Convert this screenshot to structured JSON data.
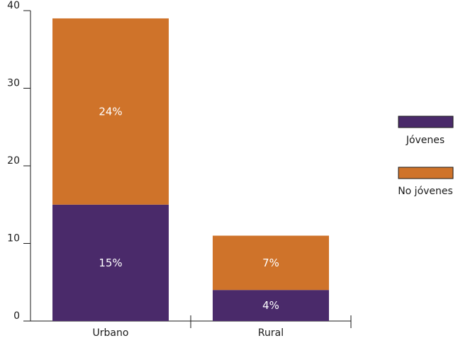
{
  "chart_data": {
    "type": "bar",
    "stacked": true,
    "title": "",
    "xlabel": "",
    "ylabel": "",
    "categories": [
      "Urbano",
      "Rural"
    ],
    "series": [
      {
        "name": "Jóvenes",
        "values": [
          15,
          4
        ],
        "labels": [
          "15%",
          "4%"
        ],
        "color": "#4a2a6a"
      },
      {
        "name": "No jóvenes",
        "values": [
          24,
          7
        ],
        "labels": [
          "24%",
          "7%"
        ],
        "color": "#cf732a"
      }
    ],
    "ylim": [
      0,
      40
    ],
    "yticks": [
      "0",
      "10",
      "20",
      "30",
      "40"
    ],
    "grid": false,
    "legend_position": "right"
  }
}
